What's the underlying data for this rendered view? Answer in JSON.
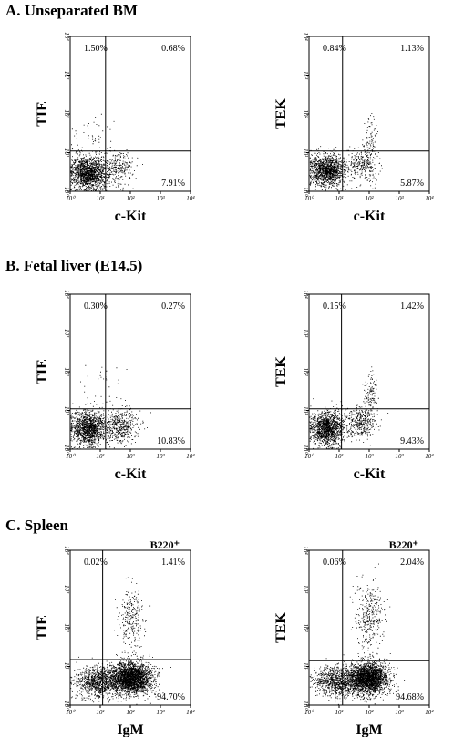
{
  "sections": [
    {
      "title": "A. Unseparated BM",
      "plots": [
        {
          "marker": "",
          "chart_data": {
            "type": "scatter",
            "xlabel": "c-Kit",
            "ylabel": "TIE",
            "xscale": "log",
            "yscale": "log",
            "xlim": [
              1,
              10000
            ],
            "ylim": [
              1,
              10000
            ],
            "xticks": [
              "10⁰",
              "10¹",
              "10²",
              "10³",
              "10⁴"
            ],
            "yticks": [
              "10⁰",
              "10¹",
              "10²",
              "10³",
              "10⁴"
            ],
            "gate": {
              "x": 15,
              "y": 11
            },
            "quadrants": {
              "upper_left": "1.50%",
              "upper_right": "0.68%",
              "lower_left": "",
              "lower_right": "7.91%"
            },
            "clusters": [
              {
                "cx": 4,
                "cy": 3,
                "sx": 0.3,
                "sy": 0.22,
                "n": 1400,
                "seed": 11
              },
              {
                "cx": 35,
                "cy": 4,
                "sx": 0.3,
                "sy": 0.2,
                "n": 280,
                "seed": 12
              },
              {
                "cx": 6,
                "cy": 20,
                "sx": 0.4,
                "sy": 0.3,
                "n": 50,
                "seed": 13
              }
            ]
          }
        },
        {
          "marker": "",
          "chart_data": {
            "type": "scatter",
            "xlabel": "c-Kit",
            "ylabel": "TEK",
            "xscale": "log",
            "yscale": "log",
            "xlim": [
              1,
              10000
            ],
            "ylim": [
              1,
              10000
            ],
            "xticks": [
              "10⁰",
              "10¹",
              "10²",
              "10³",
              "10⁴"
            ],
            "yticks": [
              "10⁰",
              "10¹",
              "10²",
              "10³",
              "10⁴"
            ],
            "gate": {
              "x": 13,
              "y": 11
            },
            "quadrants": {
              "upper_left": "0.84%",
              "upper_right": "1.13%",
              "lower_left": "",
              "lower_right": "5.87%"
            },
            "clusters": [
              {
                "cx": 4,
                "cy": 3.5,
                "sx": 0.3,
                "sy": 0.2,
                "n": 1300,
                "seed": 21
              },
              {
                "cx": 60,
                "cy": 5,
                "sx": 0.25,
                "sy": 0.22,
                "n": 300,
                "seed": 22
              },
              {
                "cx": 110,
                "cy": 25,
                "sx": 0.1,
                "sy": 0.25,
                "n": 70,
                "seed": 23
              }
            ]
          }
        }
      ]
    },
    {
      "title": "B. Fetal liver (E14.5)",
      "plots": [
        {
          "marker": "",
          "chart_data": {
            "type": "scatter",
            "xlabel": "c-Kit",
            "ylabel": "TIE",
            "xscale": "log",
            "yscale": "log",
            "xlim": [
              1,
              10000
            ],
            "ylim": [
              1,
              10000
            ],
            "xticks": [
              "10⁰",
              "10¹",
              "10²",
              "10³",
              "10⁴"
            ],
            "yticks": [
              "10⁰",
              "10¹",
              "10²",
              "10³",
              "10⁴"
            ],
            "gate": {
              "x": 15,
              "y": 11
            },
            "quadrants": {
              "upper_left": "0.30%",
              "upper_right": "0.27%",
              "lower_left": "",
              "lower_right": "10.83%"
            },
            "clusters": [
              {
                "cx": 4,
                "cy": 3.5,
                "sx": 0.28,
                "sy": 0.22,
                "n": 1300,
                "seed": 31
              },
              {
                "cx": 45,
                "cy": 4,
                "sx": 0.3,
                "sy": 0.22,
                "n": 450,
                "seed": 32
              },
              {
                "cx": 12,
                "cy": 40,
                "sx": 0.4,
                "sy": 0.3,
                "n": 30,
                "seed": 33
              }
            ]
          }
        },
        {
          "marker": "",
          "chart_data": {
            "type": "scatter",
            "xlabel": "c-Kit",
            "ylabel": "TEK",
            "xscale": "log",
            "yscale": "log",
            "xlim": [
              1,
              10000
            ],
            "ylim": [
              1,
              10000
            ],
            "xticks": [
              "10⁰",
              "10¹",
              "10²",
              "10³",
              "10⁴"
            ],
            "yticks": [
              "10⁰",
              "10¹",
              "10²",
              "10³",
              "10⁴"
            ],
            "gate": {
              "x": 12,
              "y": 11
            },
            "quadrants": {
              "upper_left": "0.15%",
              "upper_right": "1.42%",
              "lower_left": "",
              "lower_right": "9.43%"
            },
            "clusters": [
              {
                "cx": 4,
                "cy": 3.5,
                "sx": 0.28,
                "sy": 0.22,
                "n": 1300,
                "seed": 41
              },
              {
                "cx": 55,
                "cy": 5,
                "sx": 0.25,
                "sy": 0.22,
                "n": 350,
                "seed": 42
              },
              {
                "cx": 110,
                "cy": 30,
                "sx": 0.12,
                "sy": 0.28,
                "n": 110,
                "seed": 43
              }
            ]
          }
        }
      ]
    },
    {
      "title": "C. Spleen",
      "plots": [
        {
          "marker": "B220⁺",
          "chart_data": {
            "type": "scatter",
            "xlabel": "IgM",
            "ylabel": "TIE",
            "xscale": "log",
            "yscale": "log",
            "xlim": [
              1,
              10000
            ],
            "ylim": [
              1,
              10000
            ],
            "xticks": [
              "10⁰",
              "10¹",
              "10²",
              "10³",
              "10⁴"
            ],
            "yticks": [
              "10⁰",
              "10¹",
              "10²",
              "10³",
              "10⁴"
            ],
            "gate": {
              "x": 12,
              "y": 15
            },
            "quadrants": {
              "upper_left": "0.02%",
              "upper_right": "1.41%",
              "lower_left": "",
              "lower_right": "94.70%"
            },
            "clusters": [
              {
                "cx": 100,
                "cy": 5,
                "sx": 0.35,
                "sy": 0.2,
                "n": 2600,
                "seed": 51
              },
              {
                "cx": 8,
                "cy": 4,
                "sx": 0.35,
                "sy": 0.2,
                "n": 900,
                "seed": 52
              },
              {
                "cx": 110,
                "cy": 150,
                "sx": 0.22,
                "sy": 0.45,
                "n": 260,
                "seed": 53
              }
            ]
          }
        },
        {
          "marker": "B220⁺",
          "chart_data": {
            "type": "scatter",
            "xlabel": "IgM",
            "ylabel": "TEK",
            "xscale": "log",
            "yscale": "log",
            "xlim": [
              1,
              10000
            ],
            "ylim": [
              1,
              10000
            ],
            "xticks": [
              "10⁰",
              "10¹",
              "10²",
              "10³",
              "10⁴"
            ],
            "yticks": [
              "10⁰",
              "10¹",
              "10²",
              "10³",
              "10⁴"
            ],
            "gate": {
              "x": 13,
              "y": 14
            },
            "quadrants": {
              "upper_left": "0.06%",
              "upper_right": "2.04%",
              "lower_left": "",
              "lower_right": "94.68%"
            },
            "clusters": [
              {
                "cx": 90,
                "cy": 5,
                "sx": 0.33,
                "sy": 0.2,
                "n": 2500,
                "seed": 61
              },
              {
                "cx": 8,
                "cy": 4,
                "sx": 0.35,
                "sy": 0.2,
                "n": 900,
                "seed": 62
              },
              {
                "cx": 100,
                "cy": 200,
                "sx": 0.22,
                "sy": 0.45,
                "n": 330,
                "seed": 63
              }
            ]
          }
        }
      ]
    }
  ]
}
